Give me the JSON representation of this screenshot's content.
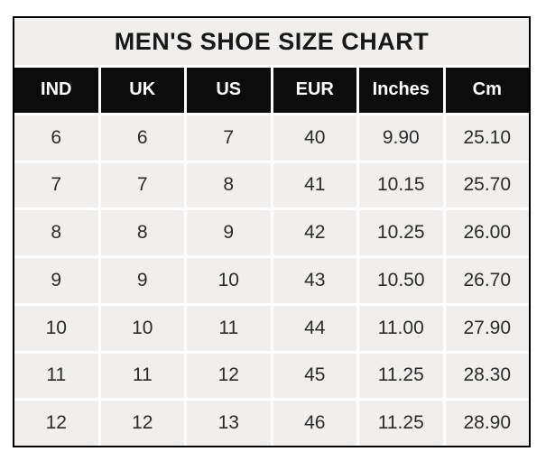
{
  "title": "MEN'S SHOE SIZE CHART",
  "colors": {
    "outer_border": "#000000",
    "gridline": "#ffffff",
    "title_bg": "#f0efed",
    "header_bg": "#0d0c0c",
    "header_text": "#ffffff",
    "cell_bg": "#f0efed",
    "cell_text": "#2b2b2b",
    "page_bg": "#ffffff"
  },
  "chart_data": {
    "type": "table",
    "title": "MEN'S SHOE SIZE CHART",
    "headers": [
      "IND",
      "UK",
      "US",
      "EUR",
      "Inches",
      "Cm"
    ],
    "rows": [
      [
        "6",
        "6",
        "7",
        "40",
        "9.90",
        "25.10"
      ],
      [
        "7",
        "7",
        "8",
        "41",
        "10.15",
        "25.70"
      ],
      [
        "8",
        "8",
        "9",
        "42",
        "10.25",
        "26.00"
      ],
      [
        "9",
        "9",
        "10",
        "43",
        "10.50",
        "26.70"
      ],
      [
        "10",
        "10",
        "11",
        "44",
        "11.00",
        "27.90"
      ],
      [
        "11",
        "11",
        "12",
        "45",
        "11.25",
        "28.30"
      ],
      [
        "12",
        "12",
        "13",
        "46",
        "11.25",
        "28.90"
      ]
    ]
  }
}
